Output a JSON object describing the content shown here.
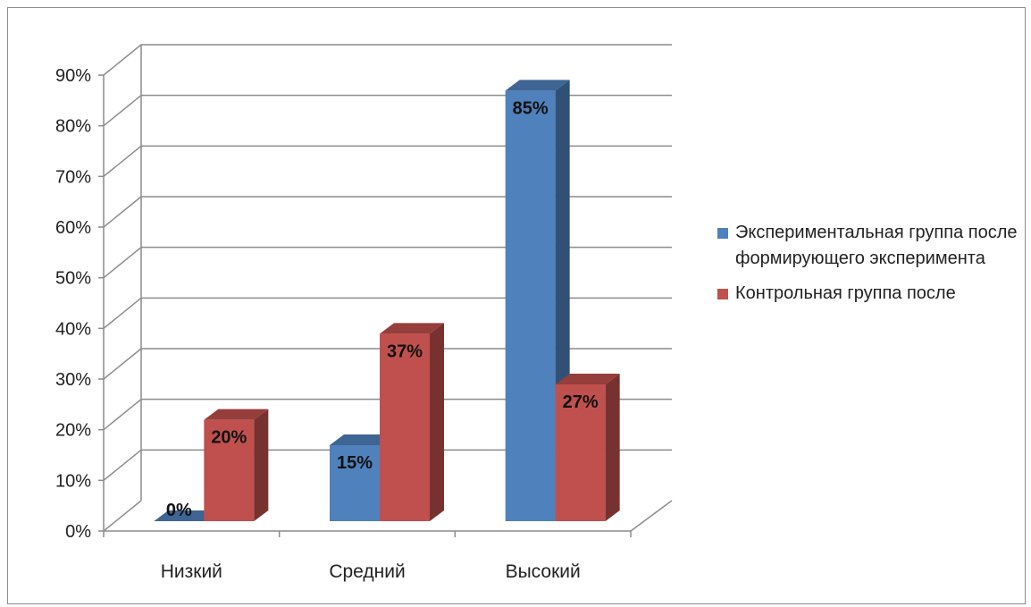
{
  "chart_data": {
    "type": "bar",
    "categories": [
      "Низкий",
      "Средний",
      "Высокий"
    ],
    "series": [
      {
        "name": "Экспериментальная группа после формирующего эксперимента",
        "values": [
          0,
          15,
          85
        ],
        "labels": [
          "0%",
          "15%",
          "85%"
        ],
        "color": "#4F81BD"
      },
      {
        "name": "Контрольная группа после",
        "values": [
          20,
          37,
          27
        ],
        "labels": [
          "20%",
          "37%",
          "27%"
        ],
        "color": "#C0504D"
      }
    ],
    "ylim": [
      0,
      90
    ],
    "yticks": [
      "0%",
      "10%",
      "20%",
      "30%",
      "40%",
      "50%",
      "60%",
      "70%",
      "80%",
      "90%"
    ],
    "grid": true,
    "legend_position": "right",
    "style": "3d-clustered-column"
  }
}
